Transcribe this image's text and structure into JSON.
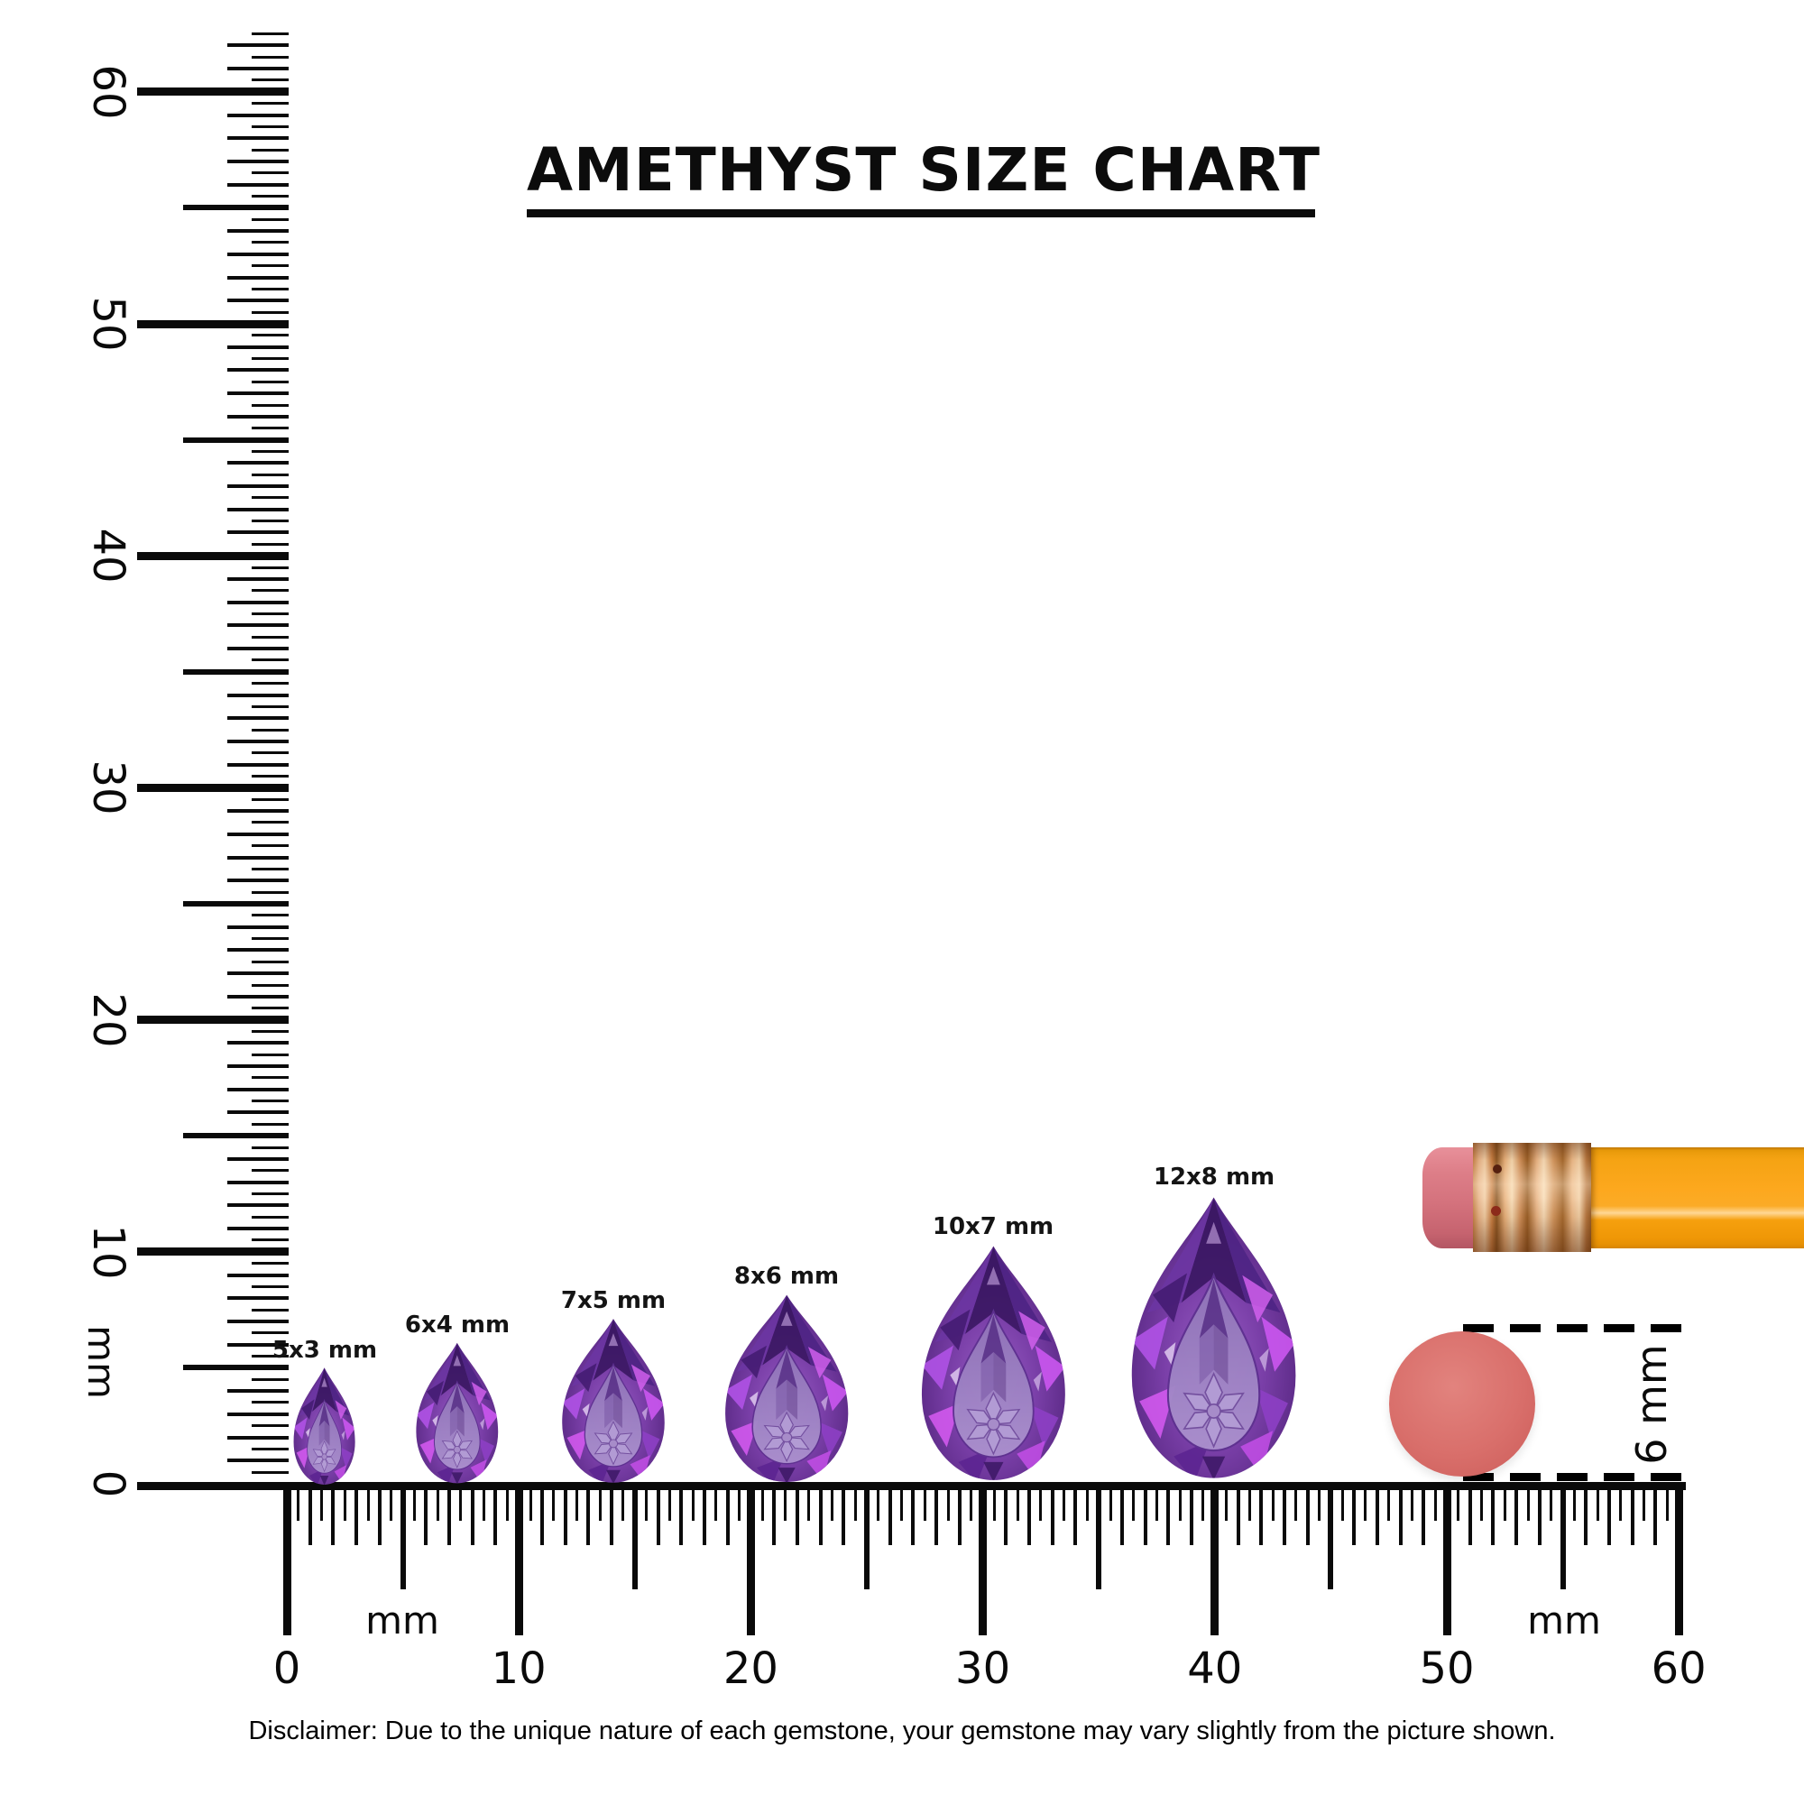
{
  "title": "AMETHYST SIZE CHART",
  "gems": [
    {
      "label": "5x3 mm",
      "width_mm": 3,
      "height_mm": 5
    },
    {
      "label": "6x4 mm",
      "width_mm": 4,
      "height_mm": 6
    },
    {
      "label": "7x5 mm",
      "width_mm": 5,
      "height_mm": 7
    },
    {
      "label": "8x6 mm",
      "width_mm": 6,
      "height_mm": 8
    },
    {
      "label": "10x7 mm",
      "width_mm": 7,
      "height_mm": 10
    },
    {
      "label": "12x8 mm",
      "width_mm": 8,
      "height_mm": 12
    }
  ],
  "rulers": {
    "unit_label": "mm",
    "vertical": {
      "numbers": [
        0,
        10,
        20,
        30,
        40,
        50,
        60
      ]
    },
    "horizontal": {
      "numbers": [
        0,
        10,
        20,
        30,
        40,
        50,
        60
      ]
    }
  },
  "reference_objects": {
    "pencil": "pencil with eraser tip",
    "eraser_circle_label": "6 mm"
  },
  "disclaimer": "Disclaimer: Due to the unique nature of each gemstone, your gemstone may vary slightly from the picture shown.",
  "colors": {
    "ink": "#0a0a0a",
    "amethyst_mid": "#7a3fa8",
    "amethyst_dark": "#451b6c",
    "amethyst_flash": "#d75af2",
    "amethyst_table": "#ab91ce",
    "pencil_body_orange": "#fda81e",
    "pencil_ferrule_copper": "#d69a62",
    "pencil_eraser_pink": "#d4727d",
    "eraser_circle_red": "#d96f6b"
  }
}
